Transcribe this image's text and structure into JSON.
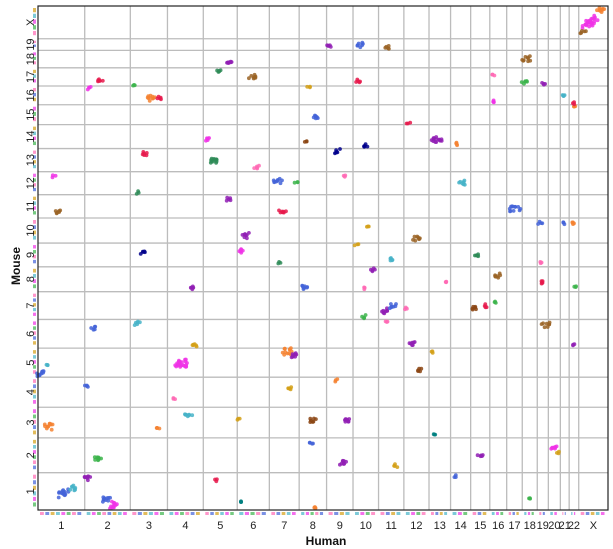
{
  "chart_data": {
    "type": "scatter",
    "title": "",
    "xlabel": "Human",
    "ylabel": "Mouse",
    "grid": true,
    "x_chromosomes": [
      "1",
      "2",
      "3",
      "4",
      "5",
      "6",
      "7",
      "8",
      "9",
      "10",
      "11",
      "12",
      "13",
      "14",
      "15",
      "16",
      "17",
      "18",
      "19",
      "20",
      "21",
      "22",
      "X"
    ],
    "x_sizes": [
      249,
      243,
      198,
      191,
      181,
      171,
      159,
      146,
      141,
      136,
      135,
      134,
      115,
      107,
      102,
      90,
      83,
      80,
      59,
      64,
      47,
      51,
      156
    ],
    "y_chromosomes": [
      "1",
      "2",
      "3",
      "4",
      "5",
      "6",
      "7",
      "8",
      "9",
      "10",
      "11",
      "12",
      "13",
      "14",
      "15",
      "16",
      "17",
      "18",
      "19",
      "X"
    ],
    "y_sizes": [
      195,
      182,
      160,
      157,
      152,
      150,
      145,
      130,
      124,
      131,
      122,
      120,
      121,
      125,
      104,
      98,
      95,
      91,
      61,
      171
    ],
    "colors": [
      "#e6194b",
      "#3cb44b",
      "#4363d8",
      "#f58231",
      "#911eb4",
      "#f032e6",
      "#46b3c8",
      "#2e8b57",
      "#8b4513",
      "#d4a017",
      "#00008b",
      "#ff69b4",
      "#008080",
      "#9a6324"
    ],
    "clusters": [
      {
        "hc": "1",
        "hp": 0.07,
        "mc": "5",
        "mp": 0.12,
        "n": 10,
        "color": "#4363d8"
      },
      {
        "hc": "1",
        "hp": 0.25,
        "mc": "3",
        "mp": 0.4,
        "n": 12,
        "color": "#f58231"
      },
      {
        "hc": "1",
        "hp": 0.55,
        "mc": "1",
        "mp": 0.45,
        "n": 14,
        "color": "#4363d8"
      },
      {
        "hc": "1",
        "hp": 0.75,
        "mc": "1",
        "mp": 0.6,
        "n": 8,
        "color": "#46b3c8"
      },
      {
        "hc": "1",
        "hp": 0.45,
        "mc": "11",
        "mp": 0.3,
        "n": 6,
        "color": "#9a6324"
      },
      {
        "hc": "1",
        "hp": 0.35,
        "mc": "12",
        "mp": 0.8,
        "n": 3,
        "color": "#f032e6"
      },
      {
        "hc": "1",
        "hp": 0.2,
        "mc": "5",
        "mp": 0.45,
        "n": 3,
        "color": "#46b3c8"
      },
      {
        "hc": "2",
        "hp": 0.08,
        "mc": "1",
        "mp": 0.85,
        "n": 8,
        "color": "#911eb4"
      },
      {
        "hc": "2",
        "hp": 0.3,
        "mc": "2",
        "mp": 0.4,
        "n": 9,
        "color": "#3cb44b"
      },
      {
        "hc": "2",
        "hp": 0.5,
        "mc": "1",
        "mp": 0.3,
        "n": 10,
        "color": "#4363d8"
      },
      {
        "hc": "2",
        "hp": 0.6,
        "mc": "1",
        "mp": 0.15,
        "n": 12,
        "color": "#f032e6"
      },
      {
        "hc": "2",
        "hp": 0.2,
        "mc": "6",
        "mp": 0.7,
        "n": 5,
        "color": "#4363d8"
      },
      {
        "hc": "2",
        "hp": 0.35,
        "mc": "17",
        "mp": 0.3,
        "n": 6,
        "color": "#e6194b"
      },
      {
        "hc": "2",
        "hp": 0.1,
        "mc": "16",
        "mp": 0.9,
        "n": 4,
        "color": "#f032e6"
      },
      {
        "hc": "2",
        "hp": 0.05,
        "mc": "4",
        "mp": 0.7,
        "n": 4,
        "color": "#4363d8"
      },
      {
        "hc": "3",
        "hp": 0.2,
        "mc": "6",
        "mp": 0.85,
        "n": 6,
        "color": "#46b3c8"
      },
      {
        "hc": "3",
        "hp": 0.35,
        "mc": "9",
        "mp": 0.6,
        "n": 5,
        "color": "#00008b"
      },
      {
        "hc": "3",
        "hp": 0.4,
        "mc": "13",
        "mp": 0.8,
        "n": 6,
        "color": "#e6194b"
      },
      {
        "hc": "3",
        "hp": 0.55,
        "mc": "16",
        "mp": 0.4,
        "n": 10,
        "color": "#f58231"
      },
      {
        "hc": "3",
        "hp": 0.8,
        "mc": "16",
        "mp": 0.35,
        "n": 5,
        "color": "#e6194b"
      },
      {
        "hc": "3",
        "hp": 0.1,
        "mc": "17",
        "mp": 0.1,
        "n": 3,
        "color": "#3cb44b"
      },
      {
        "hc": "3",
        "hp": 0.75,
        "mc": "3",
        "mp": 0.3,
        "n": 4,
        "color": "#f58231"
      },
      {
        "hc": "3",
        "hp": 0.2,
        "mc": "12",
        "mp": 0.1,
        "n": 3,
        "color": "#2e8b57"
      },
      {
        "hc": "4",
        "hp": 0.4,
        "mc": "5",
        "mp": 0.45,
        "n": 22,
        "color": "#f032e6"
      },
      {
        "hc": "4",
        "hp": 0.8,
        "mc": "6",
        "mp": 0.1,
        "n": 6,
        "color": "#d4a017"
      },
      {
        "hc": "4",
        "hp": 0.6,
        "mc": "3",
        "mp": 0.75,
        "n": 8,
        "color": "#46b3c8"
      },
      {
        "hc": "4",
        "hp": 0.7,
        "mc": "8",
        "mp": 0.15,
        "n": 6,
        "color": "#911eb4"
      },
      {
        "hc": "4",
        "hp": 0.2,
        "mc": "4",
        "mp": 0.3,
        "n": 3,
        "color": "#ff69b4"
      },
      {
        "hc": "5",
        "hp": 0.8,
        "mc": "18",
        "mp": 0.3,
        "n": 7,
        "color": "#911eb4"
      },
      {
        "hc": "5",
        "hp": 0.3,
        "mc": "13",
        "mp": 0.5,
        "n": 12,
        "color": "#2e8b57"
      },
      {
        "hc": "5",
        "hp": 0.15,
        "mc": "14",
        "mp": 0.4,
        "n": 5,
        "color": "#f032e6"
      },
      {
        "hc": "5",
        "hp": 0.75,
        "mc": "11",
        "mp": 0.8,
        "n": 5,
        "color": "#911eb4"
      },
      {
        "hc": "5",
        "hp": 0.4,
        "mc": "1",
        "mp": 0.8,
        "n": 3,
        "color": "#e6194b"
      },
      {
        "hc": "5",
        "hp": 0.5,
        "mc": "17",
        "mp": 0.8,
        "n": 5,
        "color": "#2e8b57"
      },
      {
        "hc": "6",
        "hp": 0.5,
        "mc": "17",
        "mp": 0.5,
        "n": 8,
        "color": "#9a6324"
      },
      {
        "hc": "6",
        "hp": 0.25,
        "mc": "10",
        "mp": 0.3,
        "n": 8,
        "color": "#911eb4"
      },
      {
        "hc": "6",
        "hp": 0.1,
        "mc": "9",
        "mp": 0.7,
        "n": 6,
        "color": "#f032e6"
      },
      {
        "hc": "6",
        "hp": 0.6,
        "mc": "13",
        "mp": 0.2,
        "n": 5,
        "color": "#ff69b4"
      },
      {
        "hc": "6",
        "hp": 0.15,
        "mc": "1",
        "mp": 0.2,
        "n": 4,
        "color": "#008080"
      },
      {
        "hc": "6",
        "hp": 0.05,
        "mc": "3",
        "mp": 0.6,
        "n": 3,
        "color": "#d4a017"
      },
      {
        "hc": "7",
        "hp": 0.3,
        "mc": "12",
        "mp": 0.6,
        "n": 9,
        "color": "#4363d8"
      },
      {
        "hc": "7",
        "hp": 0.45,
        "mc": "11",
        "mp": 0.3,
        "n": 7,
        "color": "#e6194b"
      },
      {
        "hc": "7",
        "hp": 0.6,
        "mc": "5",
        "mp": 0.9,
        "n": 12,
        "color": "#f58231"
      },
      {
        "hc": "7",
        "hp": 0.85,
        "mc": "5",
        "mp": 0.75,
        "n": 9,
        "color": "#911eb4"
      },
      {
        "hc": "7",
        "hp": 0.7,
        "mc": "4",
        "mp": 0.6,
        "n": 5,
        "color": "#d4a017"
      },
      {
        "hc": "7",
        "hp": 0.35,
        "mc": "9",
        "mp": 0.2,
        "n": 3,
        "color": "#2e8b57"
      },
      {
        "hc": "7",
        "hp": 0.9,
        "mc": "12",
        "mp": 0.5,
        "n": 3,
        "color": "#3cb44b"
      },
      {
        "hc": "8",
        "hp": 0.2,
        "mc": "8",
        "mp": 0.2,
        "n": 8,
        "color": "#4363d8"
      },
      {
        "hc": "8",
        "hp": 0.5,
        "mc": "3",
        "mp": 0.6,
        "n": 7,
        "color": "#8b4513"
      },
      {
        "hc": "8",
        "hp": 0.45,
        "mc": "2",
        "mp": 0.85,
        "n": 4,
        "color": "#4363d8"
      },
      {
        "hc": "8",
        "hp": 0.55,
        "mc": "1",
        "mp": 0.05,
        "n": 4,
        "color": "#f58231"
      },
      {
        "hc": "8",
        "hp": 0.25,
        "mc": "14",
        "mp": 0.3,
        "n": 3,
        "color": "#8b4513"
      },
      {
        "hc": "8",
        "hp": 0.6,
        "mc": "15",
        "mp": 0.4,
        "n": 8,
        "color": "#4363d8"
      },
      {
        "hc": "8",
        "hp": 0.35,
        "mc": "16",
        "mp": 0.9,
        "n": 3,
        "color": "#d4a017"
      },
      {
        "hc": "9",
        "hp": 0.1,
        "mc": "19",
        "mp": 0.4,
        "n": 5,
        "color": "#911eb4"
      },
      {
        "hc": "9",
        "hp": 0.8,
        "mc": "3",
        "mp": 0.55,
        "n": 8,
        "color": "#911eb4"
      },
      {
        "hc": "9",
        "hp": 0.4,
        "mc": "13",
        "mp": 0.9,
        "n": 6,
        "color": "#00008b"
      },
      {
        "hc": "9",
        "hp": 0.65,
        "mc": "2",
        "mp": 0.3,
        "n": 8,
        "color": "#911eb4"
      },
      {
        "hc": "9",
        "hp": 0.35,
        "mc": "4",
        "mp": 0.9,
        "n": 3,
        "color": "#f58231"
      },
      {
        "hc": "9",
        "hp": 0.7,
        "mc": "12",
        "mp": 0.8,
        "n": 3,
        "color": "#ff69b4"
      },
      {
        "hc": "10",
        "hp": 0.3,
        "mc": "19",
        "mp": 0.5,
        "n": 7,
        "color": "#4363d8"
      },
      {
        "hc": "10",
        "hp": 0.2,
        "mc": "17",
        "mp": 0.3,
        "n": 5,
        "color": "#e6194b"
      },
      {
        "hc": "10",
        "hp": 0.5,
        "mc": "14",
        "mp": 0.1,
        "n": 5,
        "color": "#00008b"
      },
      {
        "hc": "10",
        "hp": 0.6,
        "mc": "10",
        "mp": 0.7,
        "n": 3,
        "color": "#d4a017"
      },
      {
        "hc": "10",
        "hp": 0.4,
        "mc": "7",
        "mp": 0.1,
        "n": 4,
        "color": "#3cb44b"
      },
      {
        "hc": "10",
        "hp": 0.8,
        "mc": "8",
        "mp": 0.9,
        "n": 5,
        "color": "#911eb4"
      },
      {
        "hc": "10",
        "hp": 0.5,
        "mc": "8",
        "mp": 0.15,
        "n": 3,
        "color": "#ff69b4"
      },
      {
        "hc": "10",
        "hp": 0.15,
        "mc": "9",
        "mp": 0.9,
        "n": 3,
        "color": "#d4a017"
      },
      {
        "hc": "11",
        "hp": 0.2,
        "mc": "7",
        "mp": 0.3,
        "n": 8,
        "color": "#911eb4"
      },
      {
        "hc": "11",
        "hp": 0.6,
        "mc": "7",
        "mp": 0.5,
        "n": 7,
        "color": "#4363d8"
      },
      {
        "hc": "11",
        "hp": 0.35,
        "mc": "19",
        "mp": 0.3,
        "n": 5,
        "color": "#9a6324"
      },
      {
        "hc": "11",
        "hp": 0.5,
        "mc": "9",
        "mp": 0.3,
        "n": 5,
        "color": "#46b3c8"
      },
      {
        "hc": "11",
        "hp": 0.7,
        "mc": "2",
        "mp": 0.2,
        "n": 4,
        "color": "#d4a017"
      },
      {
        "hc": "11",
        "hp": 0.3,
        "mc": "6",
        "mp": 0.9,
        "n": 3,
        "color": "#ff69b4"
      },
      {
        "hc": "12",
        "hp": 0.2,
        "mc": "15",
        "mp": 0.1,
        "n": 3,
        "color": "#e6194b"
      },
      {
        "hc": "12",
        "hp": 0.5,
        "mc": "10",
        "mp": 0.2,
        "n": 8,
        "color": "#9a6324"
      },
      {
        "hc": "12",
        "hp": 0.3,
        "mc": "6",
        "mp": 0.15,
        "n": 7,
        "color": "#911eb4"
      },
      {
        "hc": "12",
        "hp": 0.6,
        "mc": "5",
        "mp": 0.25,
        "n": 5,
        "color": "#8b4513"
      },
      {
        "hc": "12",
        "hp": 0.1,
        "mc": "7",
        "mp": 0.4,
        "n": 3,
        "color": "#ff69b4"
      },
      {
        "hc": "13",
        "hp": 0.4,
        "mc": "14",
        "mp": 0.35,
        "n": 14,
        "color": "#911eb4"
      },
      {
        "hc": "13",
        "hp": 0.2,
        "mc": "3",
        "mp": 0.1,
        "n": 3,
        "color": "#008080"
      },
      {
        "hc": "13",
        "hp": 0.75,
        "mc": "8",
        "mp": 0.4,
        "n": 3,
        "color": "#ff69b4"
      },
      {
        "hc": "13",
        "hp": 0.2,
        "mc": "5",
        "mp": 0.85,
        "n": 3,
        "color": "#d4a017"
      },
      {
        "hc": "14",
        "hp": 0.6,
        "mc": "12",
        "mp": 0.5,
        "n": 8,
        "color": "#46b3c8"
      },
      {
        "hc": "14",
        "hp": 0.3,
        "mc": "14",
        "mp": 0.2,
        "n": 4,
        "color": "#f58231"
      },
      {
        "hc": "14",
        "hp": 0.2,
        "mc": "1",
        "mp": 0.9,
        "n": 3,
        "color": "#4363d8"
      },
      {
        "hc": "15",
        "hp": 0.3,
        "mc": "9",
        "mp": 0.5,
        "n": 6,
        "color": "#2e8b57"
      },
      {
        "hc": "15",
        "hp": 0.2,
        "mc": "7",
        "mp": 0.4,
        "n": 6,
        "color": "#8b4513"
      },
      {
        "hc": "15",
        "hp": 0.5,
        "mc": "2",
        "mp": 0.5,
        "n": 5,
        "color": "#911eb4"
      },
      {
        "hc": "15",
        "hp": 0.8,
        "mc": "7",
        "mp": 0.5,
        "n": 4,
        "color": "#e6194b"
      },
      {
        "hc": "16",
        "hp": 0.5,
        "mc": "8",
        "mp": 0.65,
        "n": 7,
        "color": "#9a6324"
      },
      {
        "hc": "16",
        "hp": 0.3,
        "mc": "16",
        "mp": 0.2,
        "n": 4,
        "color": "#f032e6"
      },
      {
        "hc": "16",
        "hp": 0.4,
        "mc": "7",
        "mp": 0.6,
        "n": 3,
        "color": "#3cb44b"
      },
      {
        "hc": "16",
        "hp": 0.2,
        "mc": "17",
        "mp": 0.6,
        "n": 3,
        "color": "#ff69b4"
      },
      {
        "hc": "17",
        "hp": 0.5,
        "mc": "11",
        "mp": 0.4,
        "n": 12,
        "color": "#4363d8"
      },
      {
        "hc": "18",
        "hp": 0.3,
        "mc": "18",
        "mp": 0.5,
        "n": 9,
        "color": "#9a6324"
      },
      {
        "hc": "18",
        "hp": 0.2,
        "mc": "17",
        "mp": 0.2,
        "n": 6,
        "color": "#3cb44b"
      },
      {
        "hc": "18",
        "hp": 0.5,
        "mc": "1",
        "mp": 0.3,
        "n": 3,
        "color": "#3cb44b"
      },
      {
        "hc": "19",
        "hp": 0.3,
        "mc": "10",
        "mp": 0.8,
        "n": 4,
        "color": "#4363d8"
      },
      {
        "hc": "19",
        "hp": 0.5,
        "mc": "8",
        "mp": 0.4,
        "n": 5,
        "color": "#e6194b"
      },
      {
        "hc": "19",
        "hp": 0.8,
        "mc": "6",
        "mp": 0.8,
        "n": 8,
        "color": "#9a6324"
      },
      {
        "hc": "19",
        "hp": 0.6,
        "mc": "17",
        "mp": 0.1,
        "n": 4,
        "color": "#911eb4"
      },
      {
        "hc": "19",
        "hp": 0.4,
        "mc": "9",
        "mp": 0.2,
        "n": 3,
        "color": "#ff69b4"
      },
      {
        "hc": "20",
        "hp": 0.5,
        "mc": "2",
        "mp": 0.7,
        "n": 8,
        "color": "#f032e6"
      },
      {
        "hc": "20",
        "hp": 0.8,
        "mc": "2",
        "mp": 0.6,
        "n": 3,
        "color": "#d4a017"
      },
      {
        "hc": "21",
        "hp": 0.5,
        "mc": "16",
        "mp": 0.5,
        "n": 5,
        "color": "#46b3c8"
      },
      {
        "hc": "21",
        "hp": 0.5,
        "mc": "10",
        "mp": 0.8,
        "n": 3,
        "color": "#4363d8"
      },
      {
        "hc": "22",
        "hp": 0.3,
        "mc": "10",
        "mp": 0.8,
        "n": 4,
        "color": "#f58231"
      },
      {
        "hc": "22",
        "hp": 0.5,
        "mc": "6",
        "mp": 0.1,
        "n": 3,
        "color": "#911eb4"
      },
      {
        "hc": "22",
        "hp": 0.6,
        "mc": "15",
        "mp": 0.9,
        "n": 3,
        "color": "#f58231"
      },
      {
        "hc": "22",
        "hp": 0.4,
        "mc": "16",
        "mp": 0.1,
        "n": 3,
        "color": "#e6194b"
      },
      {
        "hc": "22",
        "hp": 0.7,
        "mc": "8",
        "mp": 0.2,
        "n": 3,
        "color": "#3cb44b"
      },
      {
        "hc": "X",
        "hp": 0.4,
        "mc": "X",
        "mp": 0.5,
        "n": 30,
        "color": "#f032e6"
      },
      {
        "hc": "X",
        "hp": 0.75,
        "mc": "X",
        "mp": 0.85,
        "n": 10,
        "color": "#f58231"
      },
      {
        "hc": "X",
        "hp": 0.15,
        "mc": "X",
        "mp": 0.2,
        "n": 5,
        "color": "#9a6324"
      }
    ]
  }
}
